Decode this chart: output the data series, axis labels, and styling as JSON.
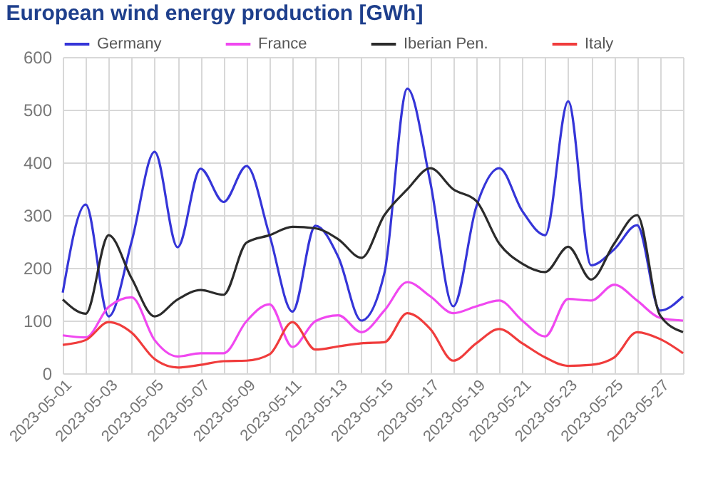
{
  "chart_data": {
    "type": "line",
    "title": "European wind energy production [GWh]",
    "x": [
      "2023-05-01",
      "2023-05-02",
      "2023-05-03",
      "2023-05-04",
      "2023-05-05",
      "2023-05-06",
      "2023-05-07",
      "2023-05-08",
      "2023-05-09",
      "2023-05-10",
      "2023-05-11",
      "2023-05-12",
      "2023-05-13",
      "2023-05-14",
      "2023-05-15",
      "2023-05-16",
      "2023-05-17",
      "2023-05-18",
      "2023-05-19",
      "2023-05-20",
      "2023-05-21",
      "2023-05-22",
      "2023-05-23",
      "2023-05-24",
      "2023-05-25",
      "2023-05-26",
      "2023-05-27",
      "2023-05-28"
    ],
    "series": [
      {
        "name": "Germany",
        "color": "#3535d8",
        "values": [
          153,
          320,
          108,
          250,
          420,
          239,
          388,
          325,
          393,
          262,
          117,
          280,
          220,
          100,
          190,
          540,
          362,
          127,
          316,
          389,
          308,
          262,
          516,
          205,
          235,
          281,
          119,
          146
        ]
      },
      {
        "name": "France",
        "color": "#f048f0",
        "values": [
          72,
          68,
          126,
          144,
          63,
          32,
          38,
          38,
          99,
          131,
          50,
          99,
          110,
          78,
          119,
          173,
          146,
          114,
          127,
          138,
          100,
          70,
          141,
          138,
          168,
          138,
          105,
          100
        ]
      },
      {
        "name": "Iberian Pen.",
        "color": "#2b2b2b",
        "values": [
          140,
          113,
          262,
          180,
          108,
          140,
          158,
          149,
          248,
          262,
          278,
          275,
          254,
          219,
          300,
          349,
          389,
          349,
          327,
          246,
          208,
          192,
          240,
          178,
          246,
          300,
          110,
          78
        ]
      },
      {
        "name": "Italy",
        "color": "#f03c3c",
        "values": [
          54,
          63,
          97,
          77,
          27,
          11,
          16,
          23,
          24,
          36,
          97,
          45,
          51,
          57,
          59,
          114,
          84,
          24,
          57,
          84,
          57,
          30,
          14,
          16,
          30,
          78,
          65,
          38
        ]
      }
    ],
    "xlim": [
      "2023-05-01",
      "2023-05-28"
    ],
    "xticks": [
      {
        "value": "2023-05-01",
        "label": "2023-05-01"
      },
      {
        "value": "2023-05-02",
        "label": null
      },
      {
        "value": "2023-05-03",
        "label": "2023-05-03"
      },
      {
        "value": "2023-05-04",
        "label": null
      },
      {
        "value": "2023-05-05",
        "label": "2023-05-05"
      },
      {
        "value": "2023-05-06",
        "label": null
      },
      {
        "value": "2023-05-07",
        "label": "2023-05-07"
      },
      {
        "value": "2023-05-08",
        "label": null
      },
      {
        "value": "2023-05-09",
        "label": "2023-05-09"
      },
      {
        "value": "2023-05-10",
        "label": null
      },
      {
        "value": "2023-05-11",
        "label": "2023-05-11"
      },
      {
        "value": "2023-05-12",
        "label": null
      },
      {
        "value": "2023-05-13",
        "label": "2023-05-13"
      },
      {
        "value": "2023-05-14",
        "label": null
      },
      {
        "value": "2023-05-15",
        "label": "2023-05-15"
      },
      {
        "value": "2023-05-16",
        "label": null
      },
      {
        "value": "2023-05-17",
        "label": "2023-05-17"
      },
      {
        "value": "2023-05-18",
        "label": null
      },
      {
        "value": "2023-05-19",
        "label": "2023-05-19"
      },
      {
        "value": "2023-05-20",
        "label": null
      },
      {
        "value": "2023-05-21",
        "label": "2023-05-21"
      },
      {
        "value": "2023-05-22",
        "label": null
      },
      {
        "value": "2023-05-23",
        "label": "2023-05-23"
      },
      {
        "value": "2023-05-24",
        "label": null
      },
      {
        "value": "2023-05-25",
        "label": "2023-05-25"
      },
      {
        "value": "2023-05-26",
        "label": null
      },
      {
        "value": "2023-05-27",
        "label": "2023-05-27"
      },
      {
        "value": "2023-05-28",
        "label": null
      }
    ],
    "ylim": [
      0,
      600
    ],
    "yticks": [
      0,
      100,
      200,
      300,
      400,
      500,
      600
    ],
    "grid": true,
    "legend": "top",
    "marker": "none",
    "line_style": "solid"
  }
}
